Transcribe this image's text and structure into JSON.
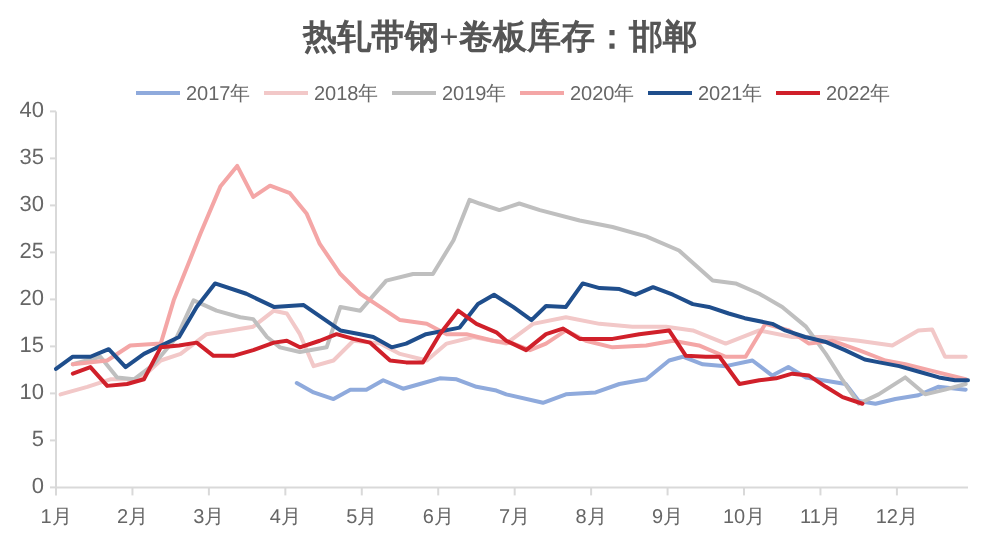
{
  "chart_data": {
    "type": "line",
    "title": "热轧带钢+卷板库存：邯郸",
    "xlim": [
      1,
      12.93
    ],
    "xticks": [
      {
        "value": 1,
        "label": "1月"
      },
      {
        "value": 2,
        "label": "2月"
      },
      {
        "value": 3,
        "label": "3月"
      },
      {
        "value": 4,
        "label": "4月"
      },
      {
        "value": 5,
        "label": "5月"
      },
      {
        "value": 6,
        "label": "6月"
      },
      {
        "value": 7,
        "label": "7月"
      },
      {
        "value": 8,
        "label": "8月"
      },
      {
        "value": 9,
        "label": "9月"
      },
      {
        "value": 10,
        "label": "10月"
      },
      {
        "value": 11,
        "label": "11月"
      },
      {
        "value": 12,
        "label": "12月"
      }
    ],
    "ylim": [
      0,
      40
    ],
    "yticks": [
      0,
      5,
      10,
      15,
      20,
      25,
      30,
      35,
      40
    ],
    "grid": false,
    "legend": "top",
    "marker": "none",
    "line_style": "solid",
    "series": [
      {
        "name": "2017年",
        "color": "#8faadc",
        "x": [
          4.15,
          4.37,
          4.63,
          4.85,
          5.06,
          5.28,
          5.54,
          5.76,
          6.02,
          6.24,
          6.5,
          6.76,
          6.89,
          7.37,
          7.67,
          8.06,
          8.37,
          8.72,
          9.02,
          9.2,
          9.46,
          9.76,
          10.11,
          10.37,
          10.58,
          10.81,
          11.33,
          11.5,
          11.72,
          11.98,
          12.28,
          12.54,
          12.9
        ],
        "values": [
          11.1,
          10.1,
          9.4,
          10.4,
          10.4,
          11.4,
          10.5,
          11.0,
          11.6,
          11.5,
          10.7,
          10.3,
          9.9,
          9.0,
          9.9,
          10.1,
          11.0,
          11.5,
          13.5,
          13.9,
          13.1,
          12.9,
          13.5,
          11.9,
          12.8,
          11.7,
          11.0,
          9.2,
          8.9,
          9.4,
          9.8,
          10.7,
          10.4
        ]
      },
      {
        "name": "2018年",
        "color": "#f2c8c8",
        "x": [
          1.06,
          1.41,
          1.71,
          2.1,
          2.37,
          2.63,
          2.97,
          3.28,
          3.58,
          3.85,
          4.02,
          4.19,
          4.37,
          4.63,
          4.89,
          5.24,
          5.5,
          5.85,
          6.11,
          6.46,
          6.89,
          7.24,
          7.67,
          8.11,
          8.54,
          8.98,
          9.33,
          9.76,
          10.2,
          10.63,
          11.07,
          11.5,
          11.94,
          12.28,
          12.46,
          12.63,
          12.9
        ],
        "values": [
          9.9,
          10.7,
          11.5,
          11.5,
          13.5,
          14.2,
          16.3,
          16.7,
          17.1,
          18.8,
          18.5,
          16.3,
          12.9,
          13.5,
          15.6,
          15.3,
          14.2,
          13.5,
          15.3,
          16.0,
          15.3,
          17.4,
          18.1,
          17.4,
          17.1,
          17.1,
          16.7,
          15.3,
          16.7,
          16.0,
          16.0,
          15.6,
          15.1,
          16.7,
          16.8,
          13.9,
          13.9
        ]
      },
      {
        "name": "2019年",
        "color": "#bfbfbf",
        "x": [
          1.22,
          1.58,
          1.8,
          2.02,
          2.28,
          2.58,
          2.8,
          3.1,
          3.41,
          3.58,
          3.76,
          3.93,
          4.19,
          4.54,
          4.72,
          4.98,
          5.32,
          5.67,
          5.93,
          6.2,
          6.41,
          6.54,
          6.8,
          7.06,
          7.33,
          7.85,
          8.28,
          8.72,
          9.15,
          9.59,
          9.89,
          10.2,
          10.5,
          10.81,
          11.07,
          11.29,
          11.5,
          11.76,
          12.11,
          12.37,
          12.63,
          12.9
        ],
        "values": [
          13.1,
          13.9,
          11.7,
          11.5,
          13.1,
          16.0,
          19.9,
          18.8,
          18.1,
          17.9,
          16.0,
          14.9,
          14.4,
          14.9,
          19.2,
          18.8,
          22.0,
          22.7,
          22.7,
          26.3,
          30.6,
          30.2,
          29.5,
          30.2,
          29.5,
          28.4,
          27.7,
          26.7,
          25.2,
          22.0,
          21.7,
          20.6,
          19.2,
          17.1,
          14.2,
          11.4,
          8.9,
          9.9,
          11.7,
          9.9,
          10.4,
          11.0
        ]
      },
      {
        "name": "2020年",
        "color": "#f4a6a6",
        "x": [
          1.22,
          1.67,
          1.97,
          2.37,
          2.54,
          2.89,
          3.15,
          3.37,
          3.58,
          3.8,
          4.06,
          4.28,
          4.45,
          4.72,
          4.98,
          5.24,
          5.5,
          5.85,
          6.11,
          6.37,
          6.72,
          6.98,
          7.2,
          7.41,
          7.67,
          7.93,
          8.28,
          8.72,
          9.07,
          9.41,
          9.76,
          10.02,
          10.28,
          10.59,
          10.85,
          11.16,
          11.5,
          11.85,
          12.11,
          12.46,
          12.9
        ],
        "values": [
          13.1,
          13.5,
          15.1,
          15.3,
          19.9,
          27.0,
          32.0,
          34.2,
          30.9,
          32.1,
          31.3,
          29.1,
          25.9,
          22.7,
          20.6,
          19.2,
          17.8,
          17.4,
          16.3,
          16.3,
          15.6,
          15.3,
          14.6,
          15.3,
          16.7,
          15.6,
          14.9,
          15.1,
          15.6,
          15.1,
          13.9,
          13.9,
          17.4,
          16.7,
          15.3,
          15.6,
          14.6,
          13.5,
          13.1,
          12.4,
          11.5
        ]
      },
      {
        "name": "2021年",
        "color": "#1f4e8c",
        "x": [
          1.0,
          1.22,
          1.45,
          1.69,
          1.91,
          2.15,
          2.61,
          2.84,
          3.08,
          3.49,
          3.85,
          4.24,
          4.72,
          4.98,
          5.15,
          5.39,
          5.58,
          5.84,
          6.28,
          6.52,
          6.73,
          6.98,
          7.22,
          7.41,
          7.67,
          7.89,
          8.11,
          8.37,
          8.58,
          8.81,
          9.07,
          9.33,
          9.54,
          9.8,
          10.01,
          10.37,
          10.54,
          10.8,
          11.06,
          11.32,
          11.58,
          11.77,
          12.03,
          12.29,
          12.55,
          12.76,
          12.93
        ],
        "values": [
          12.6,
          13.9,
          13.9,
          14.7,
          12.8,
          14.2,
          16.0,
          19.2,
          21.7,
          20.6,
          19.2,
          19.4,
          16.7,
          16.3,
          16.0,
          14.9,
          15.3,
          16.3,
          17.0,
          19.5,
          20.5,
          19.2,
          17.8,
          19.3,
          19.2,
          21.7,
          21.2,
          21.1,
          20.5,
          21.3,
          20.5,
          19.5,
          19.2,
          18.5,
          18.0,
          17.4,
          16.7,
          16.0,
          15.5,
          14.6,
          13.6,
          13.3,
          12.9,
          12.3,
          11.7,
          11.4,
          11.4
        ]
      },
      {
        "name": "2022年",
        "color": "#d0202a",
        "x": [
          1.22,
          1.45,
          1.67,
          1.93,
          2.15,
          2.37,
          2.61,
          2.84,
          3.06,
          3.32,
          3.58,
          3.85,
          4.02,
          4.19,
          4.45,
          4.67,
          4.89,
          5.11,
          5.37,
          5.58,
          5.8,
          6.02,
          6.26,
          6.5,
          6.76,
          6.89,
          7.15,
          7.41,
          7.63,
          7.85,
          8.28,
          8.63,
          9.02,
          9.24,
          9.5,
          9.68,
          9.94,
          10.2,
          10.42,
          10.63,
          10.85,
          11.07,
          11.29,
          11.55
        ],
        "values": [
          12.1,
          12.8,
          10.8,
          11.0,
          11.5,
          14.9,
          15.1,
          15.4,
          14.0,
          14.0,
          14.6,
          15.4,
          15.6,
          14.9,
          15.6,
          16.3,
          15.8,
          15.4,
          13.5,
          13.3,
          13.3,
          16.3,
          18.8,
          17.4,
          16.5,
          15.6,
          14.6,
          16.3,
          16.9,
          15.8,
          15.8,
          16.3,
          16.7,
          14.0,
          13.9,
          13.9,
          11.0,
          11.4,
          11.6,
          12.1,
          11.9,
          10.7,
          9.6,
          8.9
        ]
      }
    ]
  }
}
